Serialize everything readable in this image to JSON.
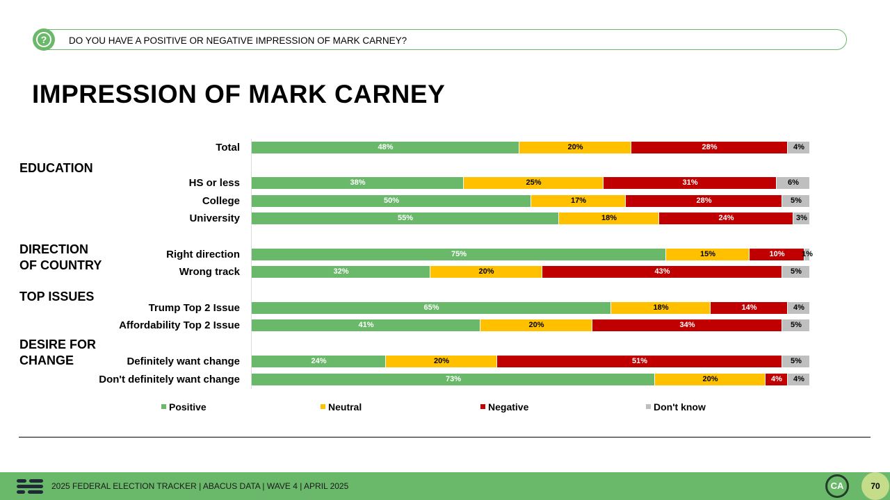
{
  "question": "DO YOU HAVE A POSITIVE OR NEGATIVE IMPRESSION OF MARK CARNEY?",
  "question_icon": "question-circle-icon",
  "footer": {
    "text": "2025 FEDERAL ELECTION TRACKER  |  ABACUS DATA  |  WAVE 4  |  APRIL 2025",
    "logo": "abacus-data-logo-icon",
    "badge": "CA",
    "page_number": "70"
  },
  "colors": {
    "accent": "#6ab86a",
    "positive": "#6ab86a",
    "neutral": "#ffc000",
    "negative": "#c00000",
    "dont_know": "#bfbfbf"
  },
  "sections": [
    "EDUCATION",
    "DIRECTION\nOF COUNTRY",
    "TOP ISSUES",
    "DESIRE FOR\nCHANGE"
  ],
  "chart_data": {
    "type": "bar",
    "orientation": "horizontal",
    "stacked": true,
    "title": "IMPRESSION OF MARK CARNEY",
    "xlim": [
      0,
      100
    ],
    "legend_position": "bottom",
    "categories": [
      "Total",
      "HS or less",
      "College",
      "University",
      "Right direction",
      "Wrong track",
      "Trump Top 2 Issue",
      "Affordability Top 2 Issue",
      "Definitely want change",
      "Don't definitely want change"
    ],
    "series": [
      {
        "name": "Positive",
        "values": [
          48,
          38,
          50,
          55,
          75,
          32,
          65,
          41,
          24,
          73
        ]
      },
      {
        "name": "Neutral",
        "values": [
          20,
          25,
          17,
          18,
          15,
          20,
          18,
          20,
          20,
          20
        ]
      },
      {
        "name": "Negative",
        "values": [
          28,
          31,
          28,
          24,
          10,
          43,
          14,
          34,
          51,
          4
        ]
      },
      {
        "name": "Don't know",
        "values": [
          4,
          6,
          5,
          3,
          1,
          5,
          4,
          5,
          5,
          4
        ]
      }
    ]
  }
}
